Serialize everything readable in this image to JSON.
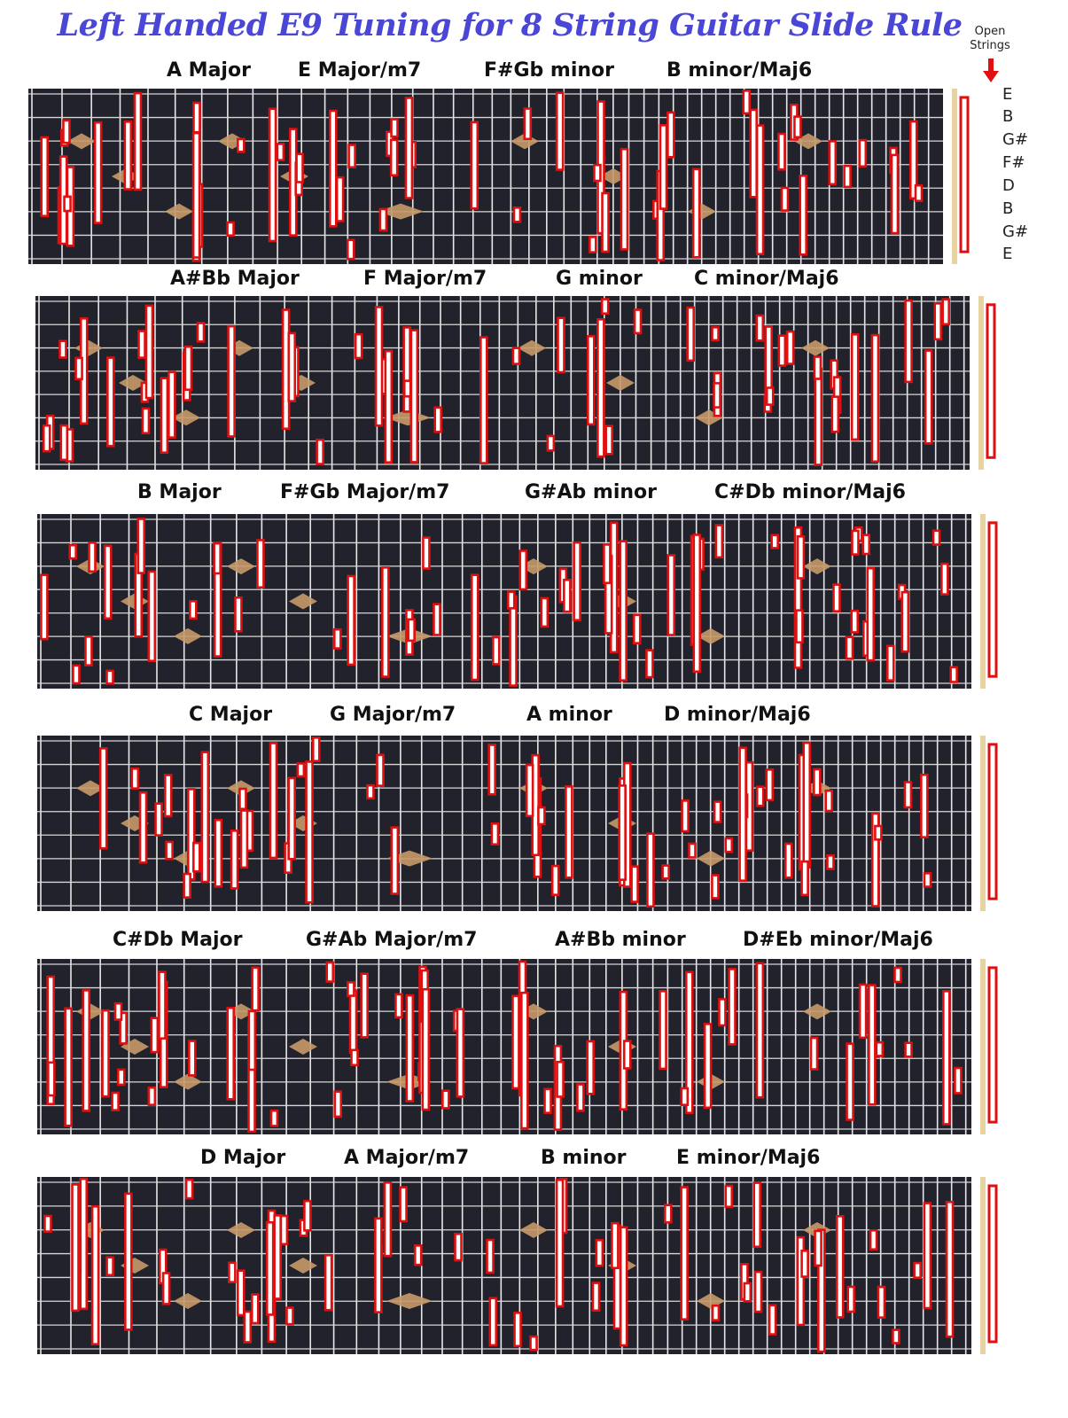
{
  "title": "Left Handed E9 Tuning for 8 String Guitar Slide Rule",
  "open_strings_label": [
    "Open",
    "Strings"
  ],
  "string_names": [
    "E",
    "B",
    "G#",
    "F#",
    "D",
    "B",
    "G#",
    "E"
  ],
  "colors": {
    "title": "#4a46d6",
    "board": "#22222c",
    "fret": "#e8e8e8",
    "string": "#d7d7d7",
    "marker_border": "#e01010",
    "marker_fill": "#ffffff",
    "inlay": "#c89a6a",
    "arrow": "#e01010"
  },
  "rows": [
    {
      "chords": [
        "A Major",
        "E Major/m7",
        "F#Gb  minor",
        "B minor/Maj6"
      ]
    },
    {
      "chords": [
        "A#Bb  Major",
        "F Major/m7",
        "G minor",
        "C minor/Maj6"
      ]
    },
    {
      "chords": [
        "B Major",
        "F#Gb  Major/m7",
        "G#Ab  minor",
        "C#Db  minor/Maj6"
      ]
    },
    {
      "chords": [
        "C Major",
        "G Major/m7",
        "A minor",
        "D minor/Maj6"
      ]
    },
    {
      "chords": [
        "C#Db  Major",
        "G#Ab  Major/m7",
        "A#Bb  minor",
        "D#Eb  minor/Maj6"
      ]
    },
    {
      "chords": [
        "D Major",
        "A Major/m7",
        "B minor",
        "E minor/Maj6"
      ]
    }
  ]
}
